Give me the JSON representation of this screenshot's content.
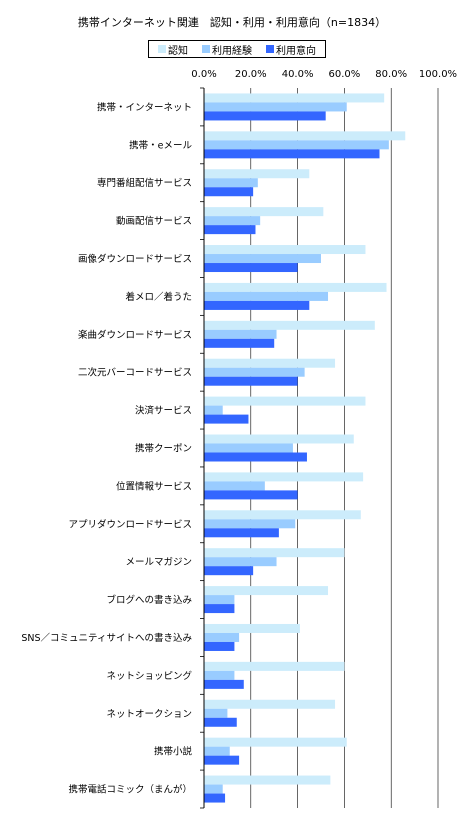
{
  "chart_data": {
    "type": "bar",
    "orientation": "horizontal",
    "title": "携帯インターネット関連　認知・利用・利用意向（n=1834）",
    "xlabel": "",
    "ylabel": "",
    "xlim": [
      0,
      100
    ],
    "x_ticks": [
      "0.0%",
      "20.0%",
      "40.0%",
      "60.0%",
      "80.0%",
      "100.0%"
    ],
    "grid": true,
    "legend_position": "top",
    "categories": [
      "携帯・インターネット",
      "携帯・eメール",
      "専門番組配信サービス",
      "動画配信サービス",
      "画像ダウンロードサービス",
      "着メロ／着うた",
      "楽曲ダウンロードサービス",
      "二次元バーコードサービス",
      "決済サービス",
      "携帯クーポン",
      "位置情報サービス",
      "アプリダウンロードサービス",
      "メールマガジン",
      "ブログへの書き込み",
      "SNS／コミュニティサイトへの書き込み",
      "ネットショッピング",
      "ネットオークション",
      "携帯小説",
      "携帯電話コミック（まんが）"
    ],
    "series": [
      {
        "name": "認知",
        "color": "#ccecfb",
        "values": [
          77,
          86,
          45,
          51,
          69,
          78,
          73,
          56,
          69,
          64,
          68,
          67,
          60,
          53,
          41,
          60,
          56,
          61,
          54
        ]
      },
      {
        "name": "利用経験",
        "color": "#99ccff",
        "values": [
          61,
          79,
          23,
          24,
          50,
          53,
          31,
          43,
          8,
          38,
          26,
          39,
          31,
          13,
          15,
          13,
          10,
          11,
          8
        ]
      },
      {
        "name": "利用意向",
        "color": "#3366ff",
        "values": [
          52,
          75,
          21,
          22,
          40,
          45,
          30,
          40,
          19,
          44,
          40,
          32,
          21,
          13,
          13,
          17,
          14,
          15,
          9
        ]
      }
    ]
  }
}
